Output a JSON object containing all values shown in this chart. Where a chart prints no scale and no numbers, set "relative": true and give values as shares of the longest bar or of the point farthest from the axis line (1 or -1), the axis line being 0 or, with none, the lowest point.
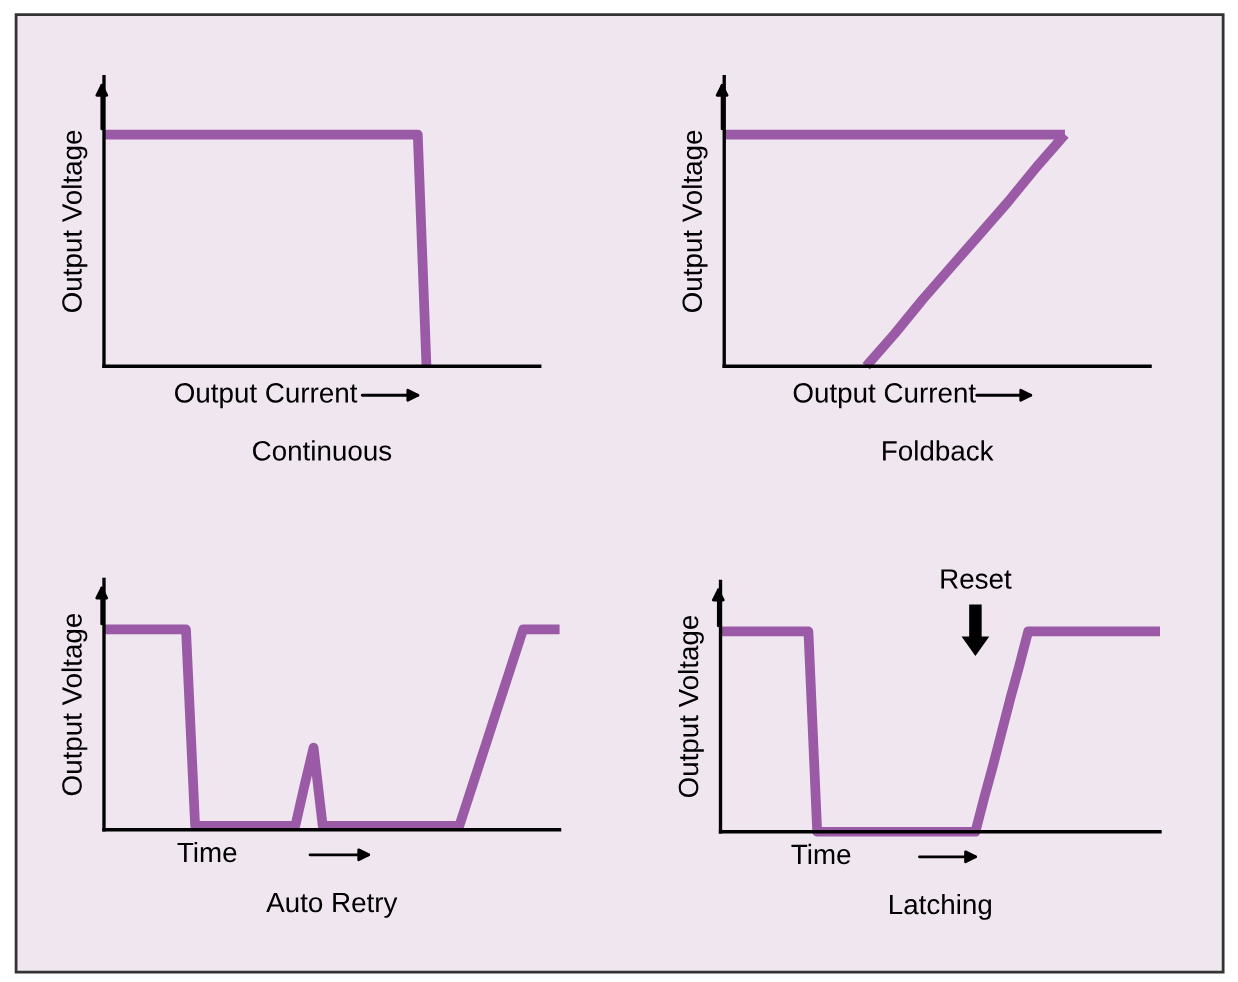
{
  "chart_data": [
    {
      "type": "line",
      "title": "Continuous",
      "xlabel": "Output Current",
      "ylabel": "Output Voltage",
      "relative": true,
      "categories": [
        null,
        null,
        null,
        null,
        null,
        null,
        null,
        null,
        null,
        null,
        null,
        null,
        null,
        null,
        null,
        null,
        null,
        null,
        null,
        null,
        null,
        null,
        null,
        null,
        null,
        null,
        null,
        null,
        null,
        null,
        null,
        null,
        null,
        null,
        null,
        null,
        null,
        null,
        null,
        null,
        null,
        null,
        null,
        null,
        null,
        null,
        null,
        null,
        null,
        null,
        null
      ],
      "series": [
        {
          "color": "#9a5aa6",
          "values": [
            1,
            1,
            1,
            1,
            1,
            1,
            1,
            1,
            1,
            1,
            1,
            1,
            1,
            1,
            1,
            1,
            1,
            1,
            1,
            1,
            1,
            1,
            1,
            1,
            1,
            1,
            1,
            1,
            1,
            1,
            1,
            1,
            1,
            1,
            1,
            1,
            1,
            0,
            null,
            null,
            null,
            null,
            null,
            null,
            null,
            null,
            null,
            null,
            null,
            null,
            null
          ]
        }
      ]
    },
    {
      "type": "line",
      "title": "Foldback",
      "xlabel": "Output Current",
      "ylabel": "Output Voltage",
      "relative": true,
      "categories": [
        null,
        null,
        null,
        null,
        null,
        null,
        null,
        null,
        null,
        null,
        null,
        null,
        null,
        null,
        null,
        null
      ],
      "series": [
        {
          "color": "#9a5aa6",
          "values": [
            1,
            1,
            1,
            1,
            1,
            1,
            1,
            1,
            1,
            1,
            1,
            1,
            1,
            null,
            null,
            null
          ]
        },
        {
          "color": "#9a5aa6",
          "values": [
            null,
            null,
            null,
            null,
            null,
            0,
            0.14,
            0.29,
            0.43,
            0.57,
            0.71,
            0.86,
            1,
            null,
            null,
            null
          ]
        }
      ]
    },
    {
      "type": "line",
      "title": "Auto Retry",
      "xlabel": "Time",
      "ylabel": "Output Voltage",
      "relative": true,
      "categories": [
        null,
        null,
        null,
        null,
        null,
        null,
        null,
        null,
        null,
        null,
        null,
        null,
        null,
        null,
        null,
        null,
        null,
        null,
        null,
        null,
        null,
        null,
        null,
        null,
        null,
        null,
        null,
        null,
        null,
        null,
        null,
        null,
        null,
        null,
        null,
        null,
        null,
        null,
        null,
        null,
        null,
        null,
        null,
        null,
        null,
        null,
        null,
        null,
        null,
        null,
        null
      ],
      "series": [
        {
          "color": "#9a5aa6",
          "values": [
            1,
            1,
            1,
            1,
            1,
            1,
            1,
            1,
            1,
            1,
            0.02,
            0.02,
            0.02,
            0.02,
            0.02,
            0.02,
            0.02,
            0.02,
            0.02,
            0.02,
            0.02,
            0.02,
            0.22,
            0.41,
            0.02,
            0.02,
            0.02,
            0.02,
            0.02,
            0.02,
            0.02,
            0.02,
            0.02,
            0.02,
            0.02,
            0.02,
            0.02,
            0.02,
            0.02,
            0.02,
            0.16,
            0.3,
            0.44,
            0.58,
            0.72,
            0.86,
            1,
            1,
            1,
            1,
            1
          ]
        }
      ]
    },
    {
      "type": "line",
      "title": "Latching",
      "xlabel": "Time",
      "ylabel": "Output Voltage",
      "relative": true,
      "annotations": [
        "Reset"
      ],
      "categories": [
        null,
        null,
        null,
        null,
        null,
        null,
        null,
        null,
        null,
        null,
        null,
        null,
        null,
        null,
        null,
        null,
        null,
        null,
        null,
        null,
        null,
        null,
        null,
        null,
        null,
        null,
        null,
        null,
        null,
        null,
        null,
        null,
        null,
        null,
        null,
        null,
        null,
        null,
        null,
        null,
        null,
        null,
        null,
        null,
        null,
        null,
        null,
        null,
        null,
        null,
        null
      ],
      "series": [
        {
          "color": "#9a5aa6",
          "values": [
            1,
            1,
            1,
            1,
            1,
            1,
            1,
            1,
            1,
            1,
            1,
            0,
            0,
            0,
            0,
            0,
            0,
            0,
            0,
            0,
            0,
            0,
            0,
            0,
            0,
            0,
            0,
            0,
            0,
            0,
            0.17,
            0.33,
            0.5,
            0.67,
            0.83,
            1,
            1,
            1,
            1,
            1,
            1,
            1,
            1,
            1,
            1,
            1,
            1,
            1,
            1,
            1,
            1
          ]
        }
      ]
    }
  ]
}
